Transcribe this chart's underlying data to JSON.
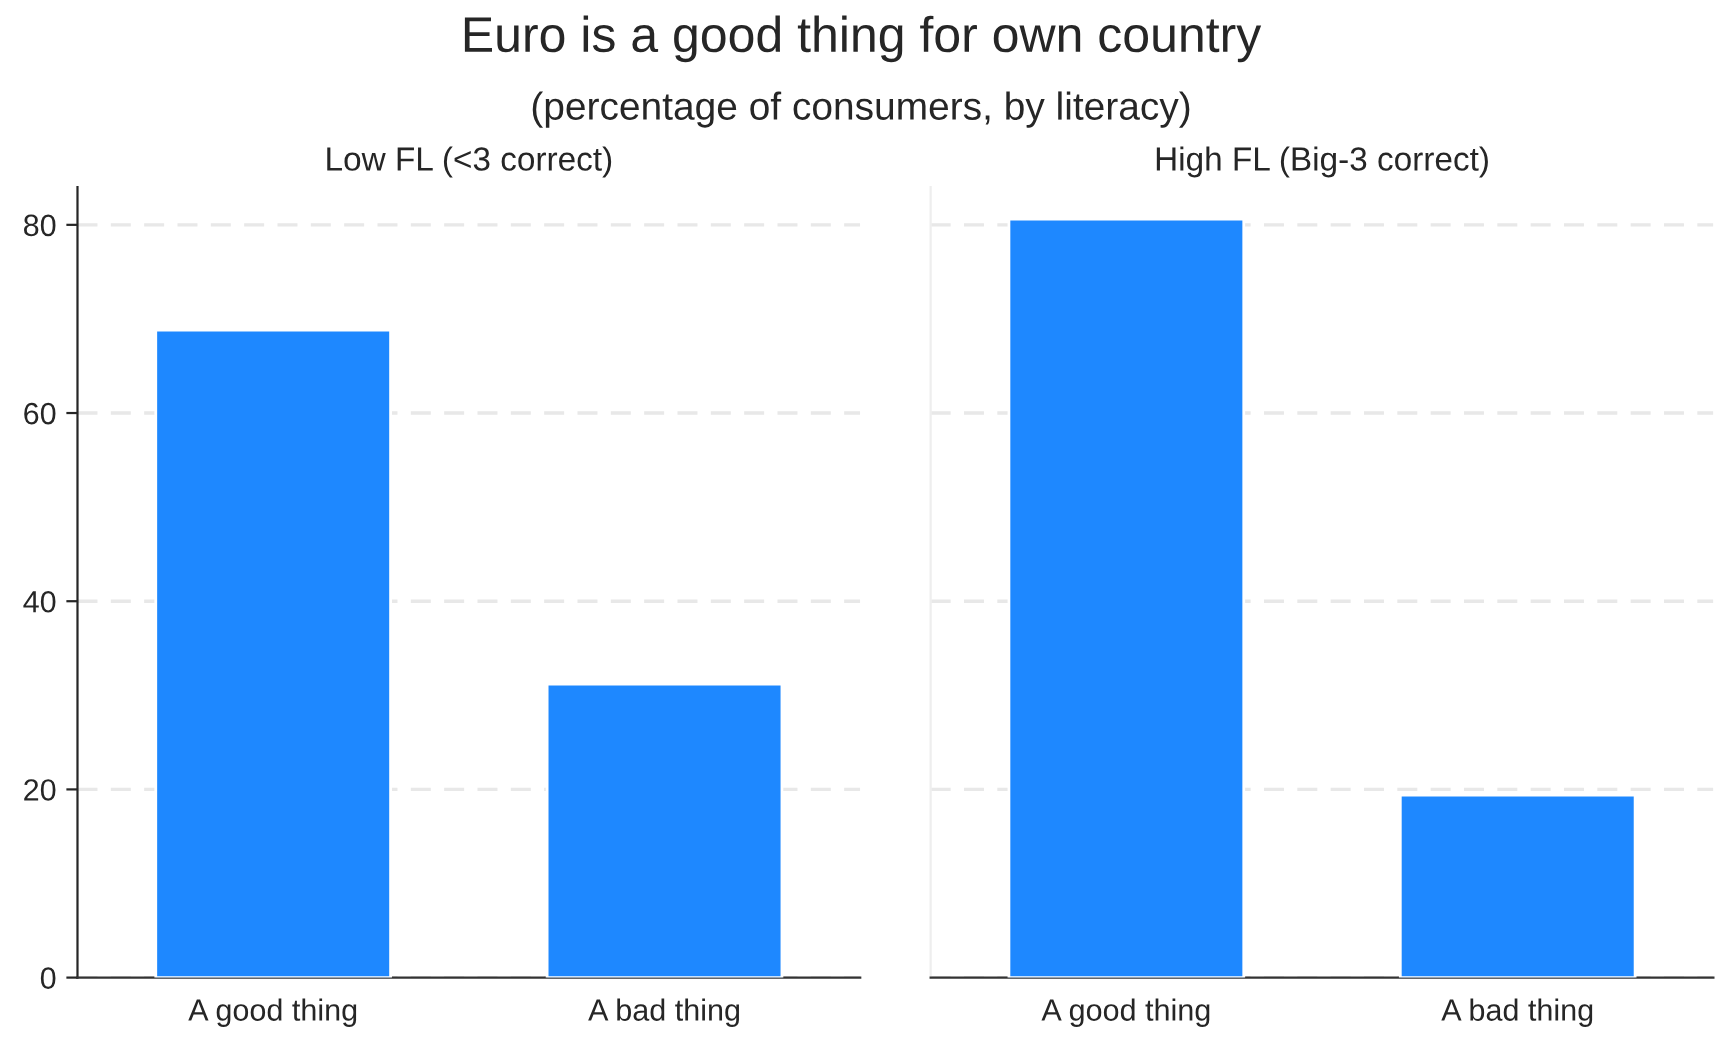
{
  "chart_data": [
    {
      "type": "bar",
      "title": "Euro is a good thing for own country",
      "subtitle": "(percentage of consumers, by literacy)",
      "annotations": [
        "Low FL (<3 correct)"
      ],
      "categories": [
        "A good thing",
        "A bad thing"
      ],
      "values": [
        68.8,
        31.2
      ],
      "color": "#1e88ff",
      "ylim": [
        0,
        84
      ],
      "yticks": [
        0,
        20,
        40,
        60,
        80
      ],
      "grid": "y"
    },
    {
      "type": "bar",
      "title": "High FL (Big-3 correct)",
      "categories": [
        "A good thing",
        "A bad thing"
      ],
      "values": [
        80.6,
        19.4
      ],
      "color": "#1e88ff",
      "ylim": [
        0,
        84
      ],
      "yticks": [
        0,
        20,
        40,
        60,
        80
      ],
      "grid": "y",
      "tick_labels": "x"
    }
  ]
}
